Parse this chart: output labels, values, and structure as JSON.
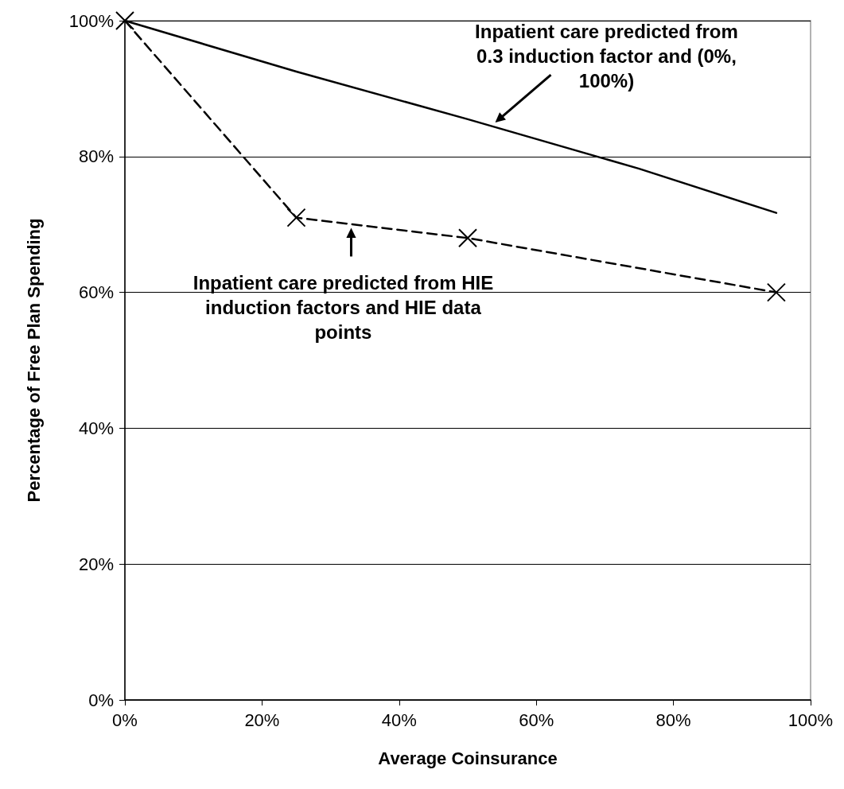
{
  "chart_data": {
    "type": "line",
    "xlabel": "Average Coinsurance",
    "ylabel": "Percentage of Free Plan Spending",
    "series": [
      {
        "x": [
          0,
          25,
          50,
          75,
          95
        ],
        "values": [
          100,
          92.5,
          85.5,
          78.2,
          71.7
        ],
        "color": "#000000",
        "line_style": "solid",
        "marker": "none"
      },
      {
        "x": [
          0,
          25,
          50,
          95
        ],
        "values": [
          100,
          71,
          68,
          60
        ],
        "color": "#000000",
        "line_style": "dashed",
        "marker": "cross"
      }
    ],
    "annotations": [
      {
        "text": "Inpatient care predicted from 0.3 induction factor and (0%, 100%)",
        "x": 54,
        "y": 85
      },
      {
        "text": "Inpatient care predicted from HIE induction factors and HIE data points",
        "x": 33,
        "y": 69.5
      }
    ],
    "xlim": [
      0,
      100
    ],
    "xticks": [
      {
        "value": 0,
        "label": "0%"
      },
      {
        "value": 20,
        "label": "20%"
      },
      {
        "value": 40,
        "label": "40%"
      },
      {
        "value": 60,
        "label": "60%"
      },
      {
        "value": 80,
        "label": "80%"
      },
      {
        "value": 100,
        "label": "100%"
      }
    ],
    "ylim": [
      0,
      100
    ],
    "yticks": [
      {
        "value": 0,
        "label": "0%"
      },
      {
        "value": 20,
        "label": "20%"
      },
      {
        "value": 40,
        "label": "40%"
      },
      {
        "value": 60,
        "label": "60%"
      },
      {
        "value": 80,
        "label": "80%"
      },
      {
        "value": 100,
        "label": "100%"
      }
    ],
    "grid": "y"
  }
}
